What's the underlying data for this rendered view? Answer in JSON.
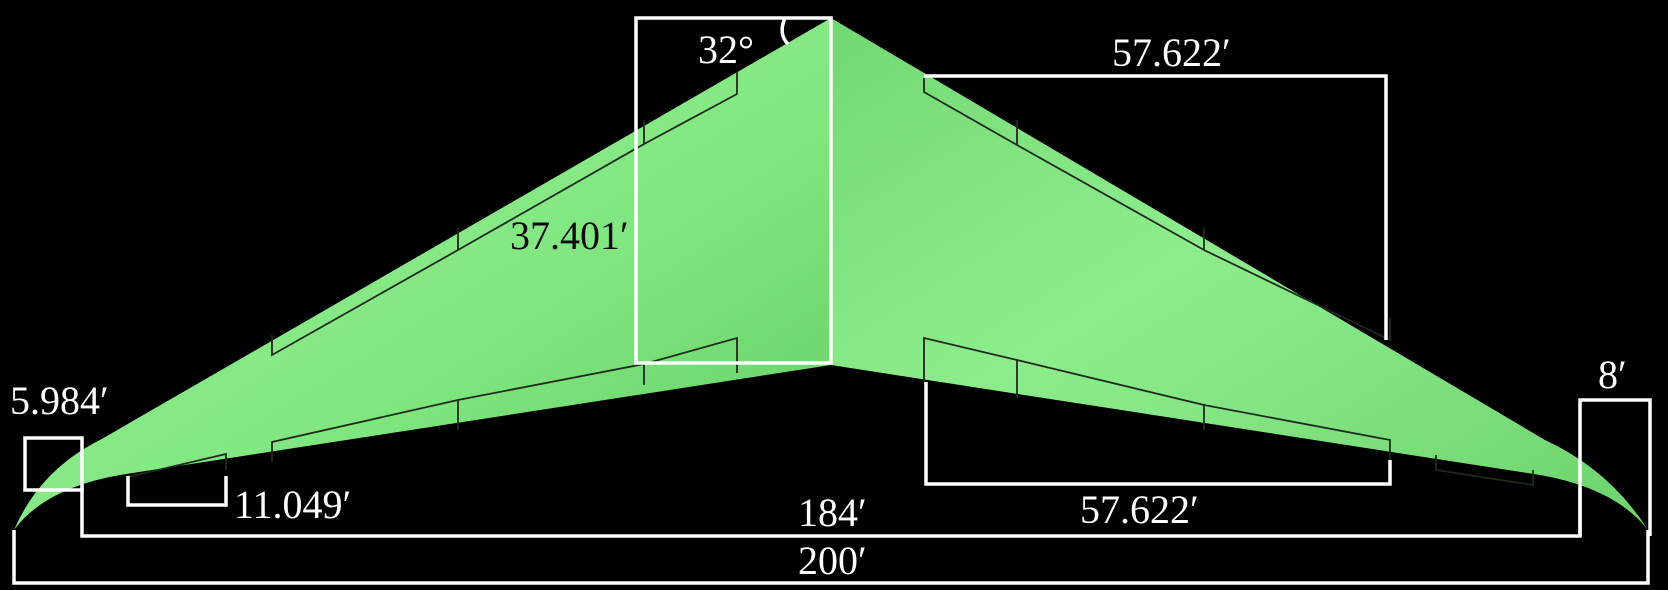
{
  "colors": {
    "background": "#000000",
    "wing_fill": "#85ec85",
    "wing_shadow": "#62cb62",
    "dimension_lines": "#ffffff",
    "panel_lines": "#1f2a1f"
  },
  "labels": {
    "sweep_angle": "32°",
    "root_chord": "37.401′",
    "leading_edge_device_span": "57.622′",
    "trailing_edge_device_span": "57.622′",
    "tip_chord": "5.984′",
    "aileron_span": "11.049′",
    "winglet_width": "8′",
    "inner_span": "184′",
    "total_span": "200′"
  }
}
